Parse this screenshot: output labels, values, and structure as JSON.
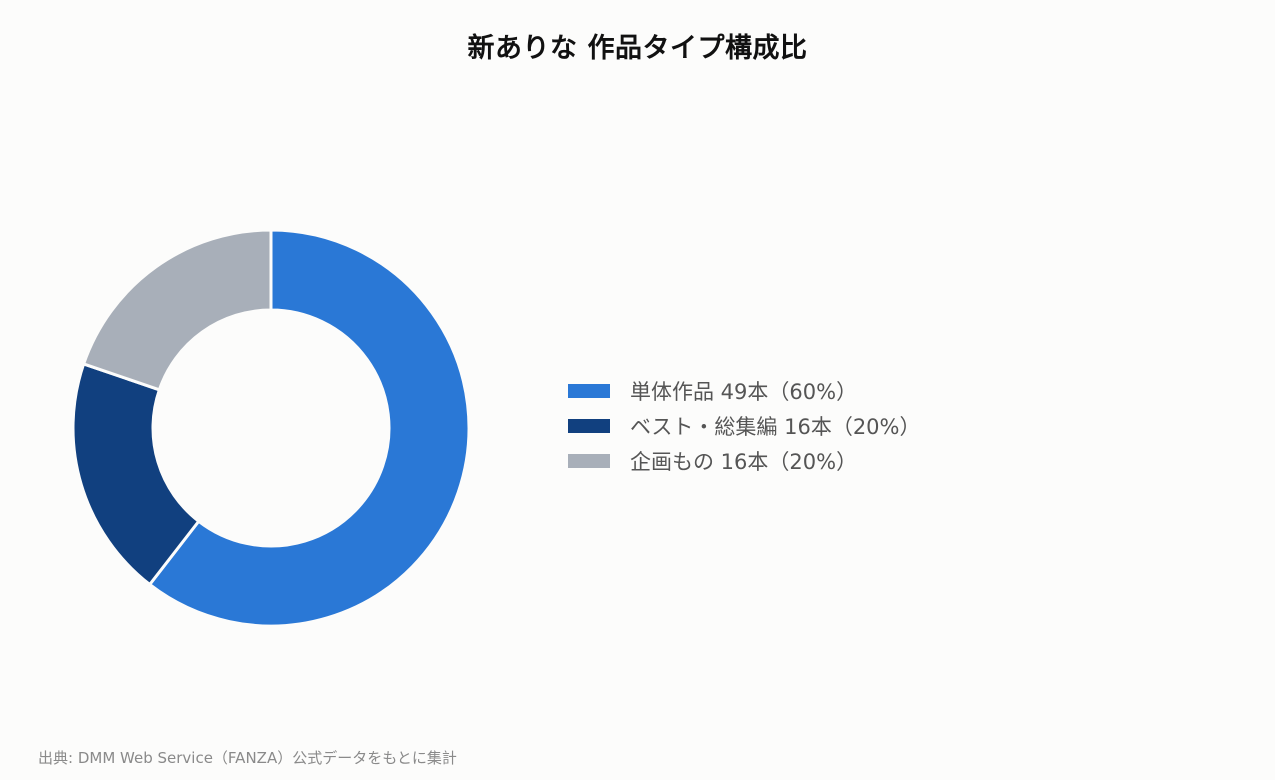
{
  "chart_data": {
    "type": "pie",
    "variant": "donut",
    "title": "新ありな 作品タイプ構成比",
    "categories": [
      "単体作品",
      "ベスト・総集編",
      "企画もの"
    ],
    "values": [
      49,
      16,
      16
    ],
    "percentages": [
      60,
      20,
      20
    ],
    "colors": [
      "#2a78d6",
      "#11407f",
      "#a8afb9"
    ],
    "legend_labels": [
      "単体作品 49本（60%）",
      "ベスト・総集編 16本（20%）",
      "企画もの 16本（20%）"
    ],
    "legend_position": "right",
    "source": "出典: DMM Web Service（FANZA）公式データをもとに集計"
  }
}
